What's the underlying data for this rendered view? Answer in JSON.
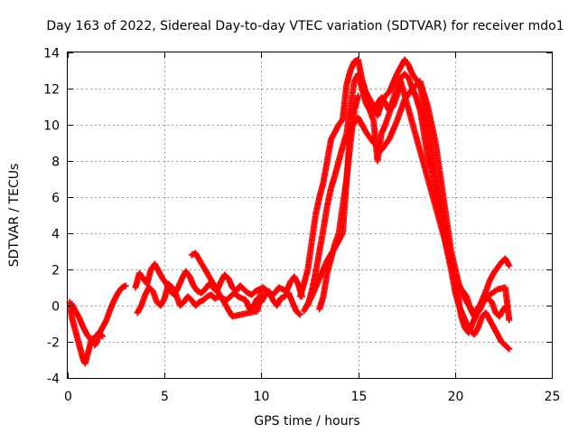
{
  "chart_data": {
    "type": "scatter",
    "title": "Day 163 of 2022, Sidereal Day-to-day VTEC variation (SDTVAR) for receiver mdo1",
    "xlabel": "GPS time / hours",
    "ylabel": "SDTVAR / TECUs",
    "xlim": [
      0,
      25
    ],
    "ylim": [
      -4,
      14
    ],
    "xticks": [
      0,
      5,
      10,
      15,
      20,
      25
    ],
    "yticks": [
      -4,
      -2,
      0,
      2,
      4,
      6,
      8,
      10,
      12,
      14
    ],
    "grid": true,
    "marker": "+",
    "color": "#ff0000",
    "series": [
      {
        "name": "SDTVAR",
        "x": [
          0.1,
          0.2,
          0.3,
          0.4,
          0.5,
          0.6,
          0.7,
          0.8,
          0.9,
          1.0,
          1.1,
          1.2,
          1.3,
          1.4,
          1.5,
          1.6,
          1.8,
          2.0,
          2.2,
          2.4,
          2.6,
          2.8,
          3.0
        ],
        "y": [
          0.2,
          -0.6,
          -1.0,
          -1.4,
          -1.8,
          -2.2,
          -2.6,
          -3.0,
          -3.2,
          -2.8,
          -2.4,
          -2.0,
          -1.8,
          -2.2,
          -2.0,
          -1.6,
          -1.2,
          -0.8,
          -0.2,
          0.3,
          0.7,
          1.0,
          1.1
        ]
      },
      {
        "name": "SDTVAR",
        "x": [
          0.2,
          0.4,
          0.6,
          0.8,
          1.0,
          1.2,
          1.4,
          1.6,
          1.8
        ],
        "y": [
          0.1,
          -0.3,
          -0.7,
          -1.2,
          -1.6,
          -1.9,
          -1.8,
          -1.5,
          -1.7
        ]
      },
      {
        "name": "SDTVAR",
        "x": [
          3.5,
          3.7,
          3.9,
          4.1,
          4.3,
          4.5,
          4.7,
          4.9,
          5.1,
          5.3,
          5.5,
          5.7,
          5.9,
          6.1,
          6.3,
          6.5,
          6.7,
          6.9,
          7.1,
          7.3,
          7.5,
          7.7,
          7.9,
          8.1,
          8.3,
          8.5,
          8.7,
          8.9,
          9.1,
          9.3,
          9.5,
          9.7,
          9.9,
          10.1,
          10.3,
          10.5,
          10.7,
          10.9,
          11.1,
          11.3,
          11.5,
          11.7,
          11.9,
          12.1
        ],
        "y": [
          1.0,
          1.8,
          1.5,
          1.2,
          2.0,
          2.3,
          1.9,
          1.5,
          1.2,
          0.8,
          0.6,
          1.0,
          1.5,
          1.9,
          1.6,
          1.1,
          0.8,
          0.7,
          0.9,
          1.2,
          1.0,
          0.8,
          1.3,
          1.7,
          1.5,
          1.0,
          0.8,
          1.1,
          0.9,
          0.7,
          0.6,
          0.8,
          0.9,
          1.0,
          0.8,
          0.5,
          0.7,
          1.0,
          0.9,
          0.8,
          1.3,
          1.6,
          1.2,
          0.5
        ]
      },
      {
        "name": "SDTVAR",
        "x": [
          3.6,
          3.8,
          4.0,
          4.2,
          4.4,
          4.6,
          4.8,
          5.0,
          5.2,
          5.4,
          5.6,
          5.8,
          6.0,
          6.2,
          6.4,
          6.6,
          6.8,
          7.0,
          7.2,
          7.4,
          7.6,
          7.8,
          8.0,
          8.2,
          8.4,
          8.6,
          8.8,
          9.0,
          9.2,
          9.4,
          9.6,
          9.8,
          10.0,
          10.2,
          10.4,
          10.6,
          10.8,
          11.0,
          11.2,
          11.4,
          11.6,
          11.8,
          12.0
        ],
        "y": [
          -0.4,
          0.0,
          0.6,
          1.0,
          0.8,
          0.2,
          0.0,
          0.4,
          1.2,
          1.0,
          0.6,
          0.0,
          0.2,
          0.5,
          0.3,
          0.0,
          0.2,
          0.3,
          0.5,
          0.6,
          0.4,
          0.5,
          0.4,
          0.3,
          0.5,
          0.7,
          0.5,
          0.4,
          0.3,
          -0.2,
          0.0,
          0.4,
          0.2,
          0.6,
          0.8,
          0.3,
          0.0,
          0.4,
          0.5,
          0.7,
          0.2,
          -0.3,
          -0.5
        ]
      },
      {
        "name": "SDTVAR",
        "x": [
          6.4,
          6.6,
          8.5,
          9.8,
          10.0
        ],
        "y": [
          2.8,
          2.9,
          -0.6,
          -0.3,
          0.9
        ]
      },
      {
        "name": "SDTVAR",
        "x": [
          12.0,
          12.2,
          12.4,
          12.6,
          12.8,
          13.0,
          13.2,
          13.4,
          13.6,
          13.8,
          14.0,
          14.2,
          14.4,
          14.6,
          14.8,
          15.0,
          15.2,
          15.4,
          15.6,
          15.8,
          16.0,
          16.2,
          16.4,
          16.6,
          16.8,
          17.0,
          17.2,
          17.4,
          17.6,
          17.8,
          18.0,
          18.2,
          18.4,
          18.6,
          18.8,
          19.0,
          19.2,
          19.4,
          19.6,
          19.8,
          20.0,
          20.2,
          20.4,
          20.6,
          20.8,
          21.0,
          21.2,
          21.4,
          21.6,
          21.8,
          22.0,
          22.2,
          22.4,
          22.6,
          22.8
        ],
        "y": [
          0.5,
          1.2,
          2.0,
          3.5,
          5.0,
          6.0,
          6.8,
          8.0,
          9.2,
          9.6,
          10.0,
          10.3,
          12.2,
          13.0,
          13.5,
          13.6,
          12.5,
          11.8,
          11.4,
          11.0,
          10.5,
          11.2,
          11.6,
          11.8,
          12.3,
          12.8,
          13.2,
          13.6,
          13.3,
          12.8,
          12.5,
          12.2,
          11.0,
          9.8,
          8.5,
          7.0,
          5.8,
          4.8,
          3.5,
          2.4,
          1.6,
          1.0,
          0.8,
          0.5,
          -0.2,
          -0.6,
          -0.2,
          0.3,
          0.8,
          1.4,
          1.8,
          2.1,
          2.4,
          2.6,
          2.2
        ]
      },
      {
        "name": "SDTVAR",
        "x": [
          12.4,
          12.6,
          12.8,
          13.0,
          13.2,
          13.4,
          13.6,
          13.8,
          14.0,
          14.2,
          14.4,
          14.6,
          14.8,
          15.0,
          15.2,
          15.4,
          15.6,
          15.8,
          16.0,
          16.2,
          16.4,
          16.6,
          16.8,
          17.0,
          17.2,
          17.4,
          17.6,
          17.8,
          18.0,
          18.2,
          18.4,
          18.6,
          18.8,
          19.0,
          19.2,
          19.4,
          19.6,
          19.8,
          20.0,
          20.2,
          20.4,
          20.6,
          20.8,
          21.0,
          21.2,
          21.4,
          21.6,
          21.8,
          22.0,
          22.2,
          22.4,
          22.6,
          22.8
        ],
        "y": [
          0.0,
          0.8,
          1.8,
          3.0,
          4.2,
          5.5,
          6.5,
          7.2,
          8.0,
          8.8,
          9.5,
          11.0,
          12.4,
          12.8,
          12.0,
          11.2,
          10.8,
          10.2,
          8.0,
          9.5,
          10.0,
          10.6,
          11.4,
          12.0,
          12.6,
          12.8,
          12.6,
          12.0,
          11.5,
          10.8,
          9.5,
          8.2,
          7.5,
          6.5,
          5.0,
          4.0,
          3.0,
          2.0,
          0.8,
          0.0,
          -0.5,
          -1.0,
          -1.4,
          -1.6,
          -1.2,
          -0.6,
          -0.4,
          -0.8,
          -1.2,
          -1.6,
          -2.0,
          -2.2,
          -2.4
        ]
      },
      {
        "name": "SDTVAR",
        "x": [
          12.2,
          12.6,
          13.0,
          13.4,
          13.8,
          14.2,
          14.6,
          15.0,
          15.4,
          15.8,
          16.2,
          16.6,
          17.0,
          17.4,
          17.8,
          18.2,
          18.6,
          19.0,
          19.4,
          19.8,
          20.2,
          20.6,
          21.0,
          21.4,
          21.8,
          22.2,
          22.6,
          22.8
        ],
        "y": [
          -0.3,
          0.5,
          1.5,
          2.5,
          3.2,
          4.0,
          9.8,
          10.4,
          9.6,
          9.0,
          8.6,
          9.2,
          10.2,
          11.4,
          12.0,
          12.4,
          11.0,
          9.0,
          6.0,
          3.0,
          1.2,
          0.2,
          -0.4,
          0.2,
          0.6,
          0.9,
          1.0,
          -0.8
        ]
      },
      {
        "name": "SDTVAR",
        "x": [
          13.0,
          13.2,
          13.4,
          13.6,
          13.8,
          14.0,
          14.2,
          14.4,
          14.6,
          14.8,
          15.0
        ],
        "y": [
          -0.2,
          0.5,
          1.8,
          2.6,
          3.4,
          4.0,
          5.5,
          7.0,
          9.0,
          10.8,
          11.6
        ]
      },
      {
        "name": "SDTVAR",
        "x": [
          15.8,
          16.0,
          16.2,
          16.4,
          16.6,
          16.8,
          17.0,
          17.2,
          19.9,
          20.1,
          20.3,
          20.5,
          20.7,
          20.9,
          21.1,
          21.3,
          21.5,
          21.7,
          21.9,
          22.1,
          22.3,
          22.5,
          22.7
        ],
        "y": [
          10.8,
          11.2,
          11.5,
          11.2,
          10.8,
          11.0,
          11.6,
          12.4,
          2.0,
          1.0,
          -0.5,
          -1.2,
          -1.5,
          -1.0,
          -0.5,
          -0.2,
          0.3,
          0.4,
          0.2,
          -0.4,
          -0.6,
          -0.2,
          0.0
        ]
      }
    ]
  }
}
